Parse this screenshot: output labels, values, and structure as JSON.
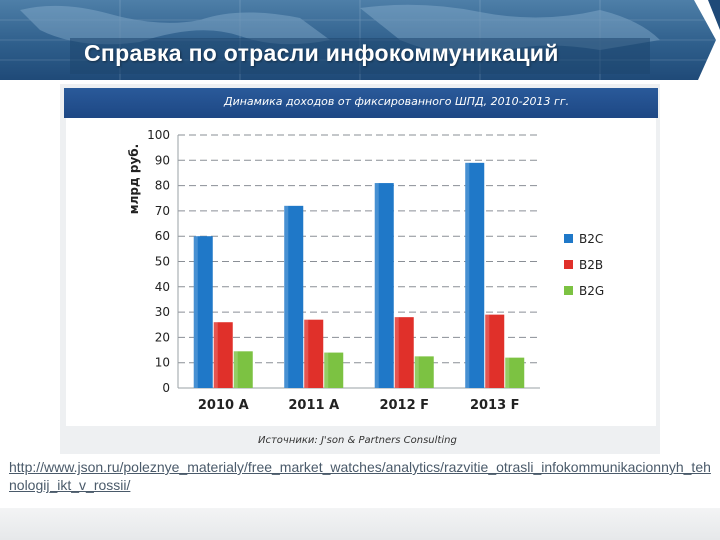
{
  "slide": {
    "title": "Справка по отрасли инфокоммуникаций",
    "url": "http://www.json.ru/poleznye_materialy/free_market_watches/analytics/razvitie_otrasli_infokommunikacionnyh_tehnologij_ikt_v_rossii/"
  },
  "chart_data": {
    "type": "bar",
    "title": "Динамика доходов от фиксированного ШПД, 2010-2013 гг.",
    "ylabel": "млрд руб.",
    "xlabel": "",
    "ylim": [
      0,
      100
    ],
    "yticks": [
      0,
      10,
      20,
      30,
      40,
      50,
      60,
      70,
      80,
      90,
      100
    ],
    "grid": true,
    "legend_position": "right",
    "categories": [
      "2010 A",
      "2011 A",
      "2012 F",
      "2013 F"
    ],
    "series": [
      {
        "name": "B2C",
        "color": "#1f78c8",
        "values": [
          60,
          72,
          81,
          89
        ]
      },
      {
        "name": "B2B",
        "color": "#e0302a",
        "values": [
          26,
          27,
          28,
          29
        ]
      },
      {
        "name": "B2G",
        "color": "#7cc242",
        "values": [
          14.5,
          14,
          12.5,
          12
        ]
      }
    ],
    "source": "Источники: J'son & Partners Consulting"
  }
}
